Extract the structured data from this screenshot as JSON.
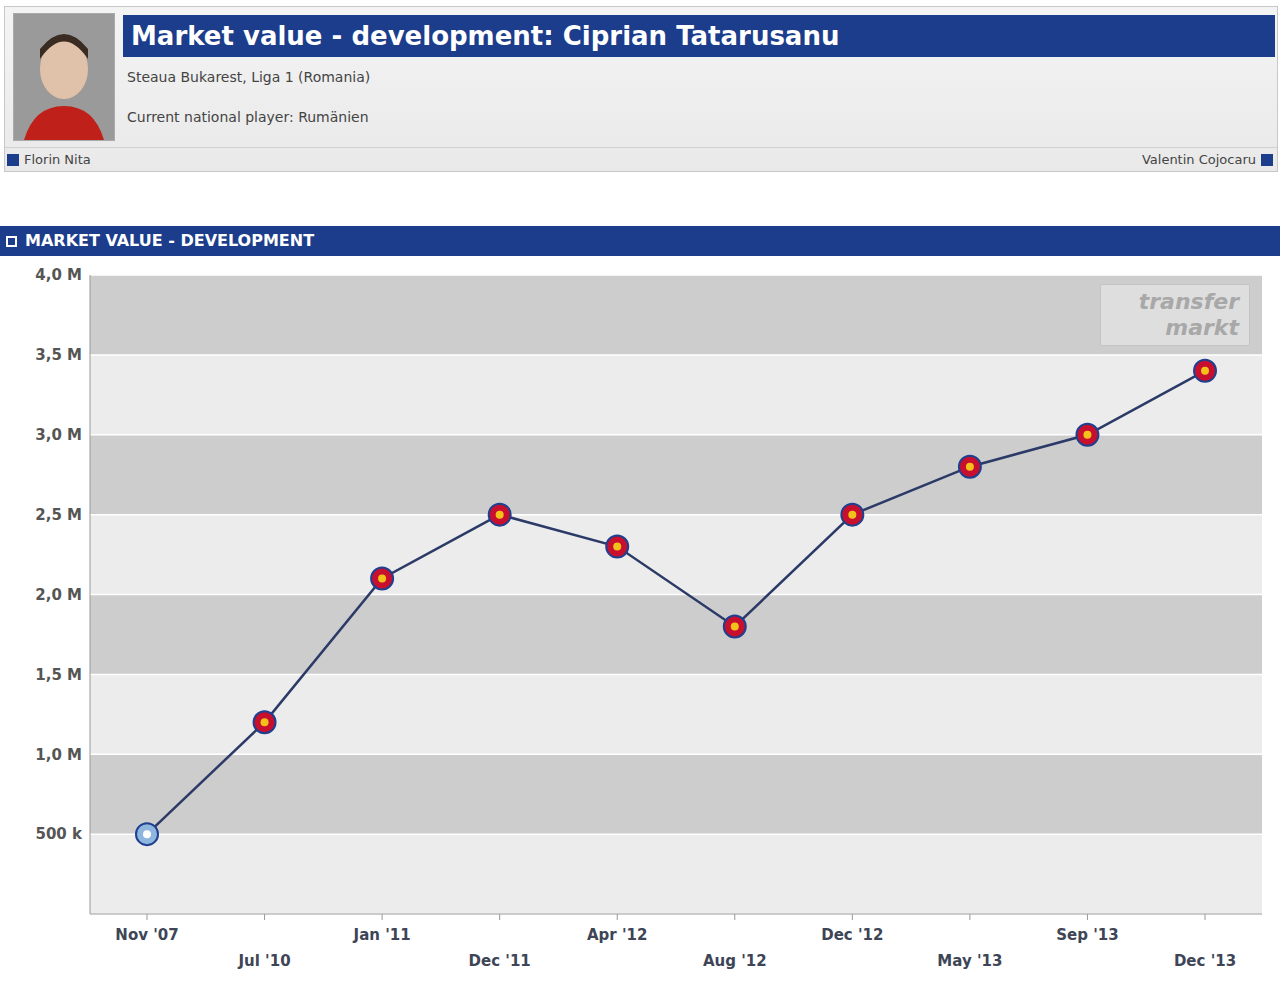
{
  "header": {
    "title": "Market value - development: Ciprian Tatarusanu",
    "club": "Steaua Bukarest, Liga 1 (Romania)",
    "national": "Current national player: Rumänien",
    "prev_player": "Florin Nita",
    "next_player": "Valentin Cojocaru"
  },
  "section_title": "MARKET VALUE - DEVELOPMENT",
  "watermark": [
    "transfer",
    "markt"
  ],
  "chart_data": {
    "type": "line",
    "categories": [
      "Nov '07",
      "Jul '10",
      "Jan '11",
      "Dec '11",
      "Apr '12",
      "Aug '12",
      "Dec '12",
      "May '13",
      "Sep '13",
      "Dec '13"
    ],
    "values": [
      500000,
      1200000,
      2100000,
      2500000,
      2300000,
      1800000,
      2500000,
      2800000,
      3000000,
      3400000
    ],
    "color": "#2b3a67",
    "colors": [
      "#8fb6de",
      "#c8102e",
      "#c8102e",
      "#c8102e",
      "#c8102e",
      "#c8102e",
      "#c8102e",
      "#c8102e",
      "#c8102e",
      "#c8102e"
    ],
    "marker": "circle",
    "ylim": [
      0,
      4000000
    ],
    "yticks": [
      {
        "value": 500000,
        "label": "500 k"
      },
      {
        "value": 1000000,
        "label": "1,0 M"
      },
      {
        "value": 1500000,
        "label": "1,5 M"
      },
      {
        "value": 2000000,
        "label": "2,0 M"
      },
      {
        "value": 2500000,
        "label": "2,5 M"
      },
      {
        "value": 3000000,
        "label": "3,0 M"
      },
      {
        "value": 3500000,
        "label": "3,5 M"
      },
      {
        "value": 4000000,
        "label": "4,0 M"
      }
    ],
    "grid": true
  }
}
